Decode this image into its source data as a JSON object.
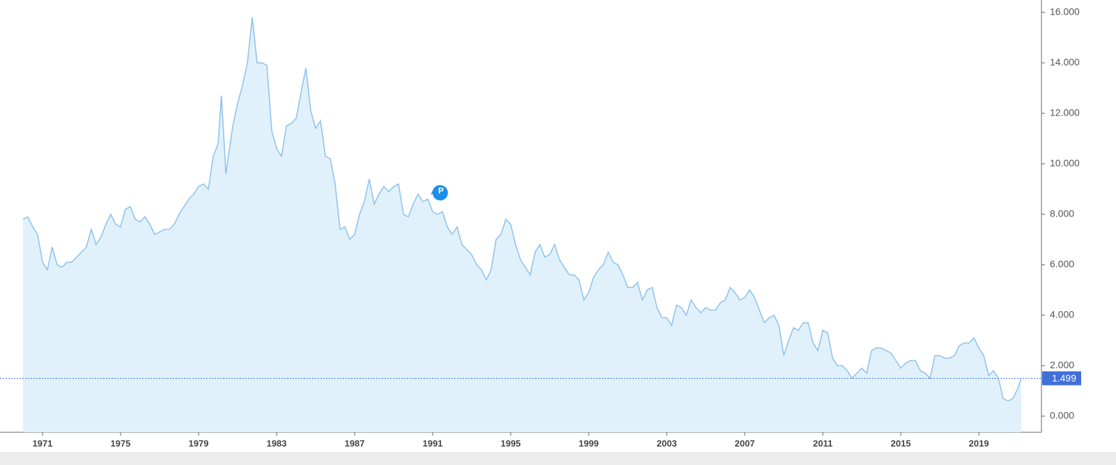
{
  "chart_data": {
    "type": "area",
    "x": [
      1970.0,
      1970.25,
      1970.5,
      1970.75,
      1971.0,
      1971.25,
      1971.5,
      1971.75,
      1972.0,
      1972.25,
      1972.5,
      1972.75,
      1973.0,
      1973.25,
      1973.5,
      1973.75,
      1974.0,
      1974.25,
      1974.5,
      1974.75,
      1975.0,
      1975.25,
      1975.5,
      1975.75,
      1976.0,
      1976.25,
      1976.5,
      1976.75,
      1977.0,
      1977.25,
      1977.5,
      1977.75,
      1978.0,
      1978.25,
      1978.5,
      1978.75,
      1979.0,
      1979.25,
      1979.5,
      1979.75,
      1980.0,
      1980.17,
      1980.4,
      1980.75,
      1981.0,
      1981.25,
      1981.5,
      1981.75,
      1982.0,
      1982.25,
      1982.5,
      1982.75,
      1983.0,
      1983.25,
      1983.5,
      1983.75,
      1984.0,
      1984.25,
      1984.5,
      1984.75,
      1985.0,
      1985.25,
      1985.5,
      1985.75,
      1986.0,
      1986.25,
      1986.5,
      1986.75,
      1987.0,
      1987.25,
      1987.5,
      1987.75,
      1988.0,
      1988.25,
      1988.5,
      1988.75,
      1989.0,
      1989.25,
      1989.5,
      1989.75,
      1990.0,
      1990.25,
      1990.5,
      1990.75,
      1991.0,
      1991.25,
      1991.5,
      1991.75,
      1992.0,
      1992.25,
      1992.5,
      1992.75,
      1993.0,
      1993.25,
      1993.5,
      1993.75,
      1994.0,
      1994.25,
      1994.5,
      1994.75,
      1995.0,
      1995.25,
      1995.5,
      1995.75,
      1996.0,
      1996.25,
      1996.5,
      1996.75,
      1997.0,
      1997.25,
      1997.5,
      1997.75,
      1998.0,
      1998.25,
      1998.5,
      1998.75,
      1999.0,
      1999.25,
      1999.5,
      1999.75,
      2000.0,
      2000.25,
      2000.5,
      2000.75,
      2001.0,
      2001.25,
      2001.5,
      2001.75,
      2002.0,
      2002.25,
      2002.5,
      2002.75,
      2003.0,
      2003.25,
      2003.5,
      2003.75,
      2004.0,
      2004.25,
      2004.5,
      2004.75,
      2005.0,
      2005.25,
      2005.5,
      2005.75,
      2006.0,
      2006.25,
      2006.5,
      2006.75,
      2007.0,
      2007.25,
      2007.5,
      2007.75,
      2008.0,
      2008.25,
      2008.5,
      2008.75,
      2009.0,
      2009.25,
      2009.5,
      2009.75,
      2010.0,
      2010.25,
      2010.5,
      2010.75,
      2011.0,
      2011.25,
      2011.5,
      2011.75,
      2012.0,
      2012.25,
      2012.5,
      2012.75,
      2013.0,
      2013.25,
      2013.5,
      2013.75,
      2014.0,
      2014.25,
      2014.5,
      2014.75,
      2015.0,
      2015.25,
      2015.5,
      2015.75,
      2016.0,
      2016.25,
      2016.5,
      2016.75,
      2017.0,
      2017.25,
      2017.5,
      2017.75,
      2018.0,
      2018.25,
      2018.5,
      2018.75,
      2019.0,
      2019.25,
      2019.5,
      2019.75,
      2020.0,
      2020.25,
      2020.5,
      2020.75,
      2021.0,
      2021.17
    ],
    "series": [
      {
        "color": "#90c4ee",
        "fill": "#e1f1fb",
        "values": [
          7.8,
          7.9,
          7.5,
          7.2,
          6.1,
          5.8,
          6.7,
          6.0,
          5.9,
          6.1,
          6.1,
          6.3,
          6.5,
          6.7,
          7.4,
          6.8,
          7.1,
          7.6,
          8.0,
          7.6,
          7.5,
          8.2,
          8.3,
          7.8,
          7.7,
          7.9,
          7.6,
          7.2,
          7.3,
          7.4,
          7.4,
          7.6,
          8.0,
          8.3,
          8.6,
          8.8,
          9.1,
          9.2,
          9.0,
          10.3,
          10.8,
          12.7,
          9.6,
          11.5,
          12.4,
          13.1,
          14.0,
          15.8,
          14.0,
          14.0,
          13.9,
          11.3,
          10.6,
          10.3,
          11.5,
          11.6,
          11.8,
          12.8,
          13.8,
          12.1,
          11.4,
          11.7,
          10.3,
          10.2,
          9.2,
          7.4,
          7.5,
          7.0,
          7.2,
          8.0,
          8.5,
          9.4,
          8.4,
          8.8,
          9.1,
          8.9,
          9.1,
          9.2,
          8.0,
          7.9,
          8.4,
          8.8,
          8.5,
          8.6,
          8.1,
          8.0,
          8.1,
          7.5,
          7.2,
          7.5,
          6.8,
          6.6,
          6.4,
          6.0,
          5.8,
          5.4,
          5.8,
          7.0,
          7.2,
          7.8,
          7.6,
          6.8,
          6.2,
          5.9,
          5.6,
          6.5,
          6.8,
          6.3,
          6.4,
          6.8,
          6.2,
          5.9,
          5.6,
          5.6,
          5.4,
          4.6,
          4.9,
          5.5,
          5.8,
          6.0,
          6.5,
          6.1,
          6.0,
          5.6,
          5.1,
          5.1,
          5.3,
          4.6,
          5.0,
          5.1,
          4.3,
          3.9,
          3.9,
          3.6,
          4.4,
          4.3,
          4.0,
          4.6,
          4.3,
          4.1,
          4.3,
          4.2,
          4.2,
          4.5,
          4.6,
          5.1,
          4.9,
          4.6,
          4.7,
          5.0,
          4.7,
          4.2,
          3.7,
          3.9,
          4.0,
          3.6,
          2.4,
          3.0,
          3.5,
          3.4,
          3.7,
          3.7,
          2.9,
          2.6,
          3.4,
          3.3,
          2.3,
          2.0,
          2.0,
          1.8,
          1.5,
          1.7,
          1.9,
          1.7,
          2.6,
          2.7,
          2.7,
          2.6,
          2.5,
          2.2,
          1.9,
          2.1,
          2.2,
          2.2,
          1.8,
          1.7,
          1.5,
          2.4,
          2.4,
          2.3,
          2.3,
          2.4,
          2.8,
          2.9,
          2.9,
          3.1,
          2.7,
          2.4,
          1.6,
          1.8,
          1.5,
          0.7,
          0.6,
          0.7,
          1.1,
          1.499
        ]
      }
    ],
    "xlim": [
      1968.82,
      2022.21
    ],
    "xticks": [
      1971,
      1975,
      1979,
      1983,
      1987,
      1991,
      1995,
      1999,
      2003,
      2007,
      2011,
      2015,
      2019
    ],
    "ylim": [
      -0.64,
      16.49
    ],
    "yticks": [
      {
        "value": 0,
        "label": "0.000"
      },
      {
        "value": 2,
        "label": "2.000"
      },
      {
        "value": 4,
        "label": "4.000"
      },
      {
        "value": 6,
        "label": "6.000"
      },
      {
        "value": 8,
        "label": "8.000"
      },
      {
        "value": 10,
        "label": "10.000"
      },
      {
        "value": 12,
        "label": "12.000"
      },
      {
        "value": 14,
        "label": "14.000"
      },
      {
        "value": 16,
        "label": "16.000"
      }
    ],
    "annotation": "P",
    "current_value_color": "#3f6fd9"
  }
}
